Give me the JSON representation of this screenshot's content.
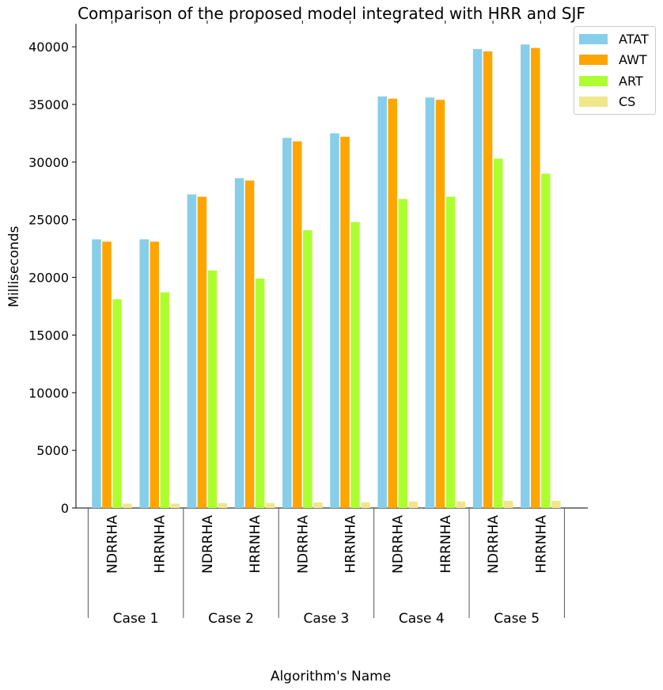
{
  "chart_data": {
    "type": "bar",
    "title": "Comparison of the proposed model integrated with HRR and SJF",
    "xlabel": "Algorithm's Name",
    "ylabel": "Milliseconds",
    "ylim": [
      0,
      42000
    ],
    "yticks": [
      0,
      5000,
      10000,
      15000,
      20000,
      25000,
      30000,
      35000,
      40000
    ],
    "groups": [
      "Case 1",
      "Case 2",
      "Case 3",
      "Case 4",
      "Case 5"
    ],
    "categories": [
      "NDRRHA",
      "HRRNHA",
      "NDRRHA",
      "HRRNHA",
      "NDRRHA",
      "HRRNHA",
      "NDRRHA",
      "HRRNHA",
      "NDRRHA",
      "HRRNHA"
    ],
    "legend_position": "top-right",
    "series": [
      {
        "name": "ATAT",
        "color": "#87ceeb",
        "values": [
          23300,
          23300,
          27200,
          28600,
          32100,
          32500,
          35700,
          35600,
          39800,
          40200
        ]
      },
      {
        "name": "AWT",
        "color": "#ffa500",
        "values": [
          23100,
          23100,
          27000,
          28400,
          31800,
          32200,
          35500,
          35400,
          39600,
          39900
        ]
      },
      {
        "name": "ART",
        "color": "#adff2f",
        "values": [
          18100,
          18700,
          20600,
          19900,
          24100,
          24800,
          26800,
          27000,
          30300,
          29000
        ]
      },
      {
        "name": "CS",
        "color": "#f0e68c",
        "values": [
          380,
          380,
          420,
          430,
          480,
          490,
          560,
          560,
          620,
          620
        ]
      }
    ]
  }
}
